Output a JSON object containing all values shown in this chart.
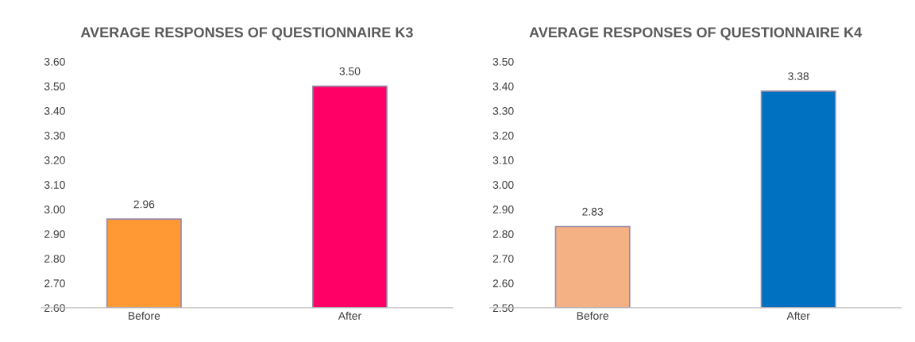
{
  "chart_data": [
    {
      "type": "bar",
      "title": "AVERAGE RESPONSES OF QUESTIONNAIRE K3",
      "categories": [
        "Before",
        "After"
      ],
      "values": [
        2.96,
        3.5
      ],
      "colors": [
        "#ff9933",
        "#ff0066"
      ],
      "ylim": [
        2.6,
        3.6
      ],
      "yticks": [
        {
          "value": 2.6,
          "label": "2.60"
        },
        {
          "value": 2.7,
          "label": "2.70"
        },
        {
          "value": 2.8,
          "label": "2.80"
        },
        {
          "value": 2.9,
          "label": "2.90"
        },
        {
          "value": 3.0,
          "label": "3.00"
        },
        {
          "value": 3.1,
          "label": "3.10"
        },
        {
          "value": 3.2,
          "label": "3.20"
        },
        {
          "value": 3.3,
          "label": "3.30"
        },
        {
          "value": 3.4,
          "label": "3.40"
        },
        {
          "value": 3.5,
          "label": "3.50"
        },
        {
          "value": 3.6,
          "label": "3.60"
        }
      ],
      "value_labels": [
        "2.96",
        "3.50"
      ],
      "grid": false,
      "legend": false
    },
    {
      "type": "bar",
      "title": "AVERAGE RESPONSES OF QUESTIONNAIRE K4",
      "categories": [
        "Before",
        "After"
      ],
      "values": [
        2.83,
        3.38
      ],
      "colors": [
        "#f4b183",
        "#0070c0"
      ],
      "ylim": [
        2.5,
        3.5
      ],
      "yticks": [
        {
          "value": 2.5,
          "label": "2.50"
        },
        {
          "value": 2.6,
          "label": "2.60"
        },
        {
          "value": 2.7,
          "label": "2.70"
        },
        {
          "value": 2.8,
          "label": "2.80"
        },
        {
          "value": 2.9,
          "label": "2.90"
        },
        {
          "value": 3.0,
          "label": "3.00"
        },
        {
          "value": 3.1,
          "label": "3.10"
        },
        {
          "value": 3.2,
          "label": "3.20"
        },
        {
          "value": 3.3,
          "label": "3.30"
        },
        {
          "value": 3.4,
          "label": "3.40"
        },
        {
          "value": 3.5,
          "label": "3.50"
        }
      ],
      "value_labels": [
        "2.83",
        "3.38"
      ],
      "grid": false,
      "legend": false
    }
  ]
}
